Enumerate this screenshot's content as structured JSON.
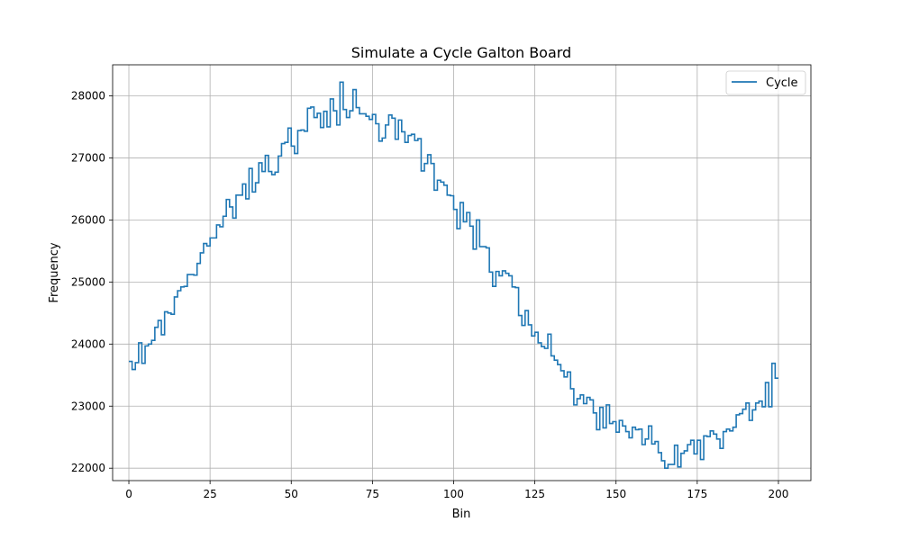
{
  "chart_data": {
    "type": "line",
    "drawstyle": "steps-post",
    "title": "Simulate a Cycle Galton Board",
    "xlabel": "Bin",
    "ylabel": "Frequency",
    "xlim": [
      -5,
      210
    ],
    "ylim": [
      21800,
      28500
    ],
    "xticks": [
      0,
      25,
      50,
      75,
      100,
      125,
      150,
      175,
      200
    ],
    "yticks": [
      22000,
      23000,
      24000,
      25000,
      26000,
      27000,
      28000
    ],
    "grid": true,
    "legend_position": "top-right",
    "series": [
      {
        "name": "Cycle",
        "color": "#1f77b4",
        "x": [
          0,
          1,
          2,
          3,
          4,
          5,
          6,
          7,
          8,
          9,
          10,
          11,
          12,
          13,
          14,
          15,
          16,
          17,
          18,
          19,
          20,
          21,
          22,
          23,
          24,
          25,
          26,
          27,
          28,
          29,
          30,
          31,
          32,
          33,
          34,
          35,
          36,
          37,
          38,
          39,
          40,
          41,
          42,
          43,
          44,
          45,
          46,
          47,
          48,
          49,
          50,
          51,
          52,
          53,
          54,
          55,
          56,
          57,
          58,
          59,
          60,
          61,
          62,
          63,
          64,
          65,
          66,
          67,
          68,
          69,
          70,
          71,
          72,
          73,
          74,
          75,
          76,
          77,
          78,
          79,
          80,
          81,
          82,
          83,
          84,
          85,
          86,
          87,
          88,
          89,
          90,
          91,
          92,
          93,
          94,
          95,
          96,
          97,
          98,
          99,
          100,
          101,
          102,
          103,
          104,
          105,
          106,
          107,
          108,
          109,
          110,
          111,
          112,
          113,
          114,
          115,
          116,
          117,
          118,
          119,
          120,
          121,
          122,
          123,
          124,
          125,
          126,
          127,
          128,
          129,
          130,
          131,
          132,
          133,
          134,
          135,
          136,
          137,
          138,
          139,
          140,
          141,
          142,
          143,
          144,
          145,
          146,
          147,
          148,
          149,
          150,
          151,
          152,
          153,
          154,
          155,
          156,
          157,
          158,
          159,
          160,
          161,
          162,
          163,
          164,
          165,
          166,
          167,
          168,
          169,
          170,
          171,
          172,
          173,
          174,
          175,
          176,
          177,
          178,
          179,
          180,
          181,
          182,
          183,
          184,
          185,
          186,
          187,
          188,
          189,
          190,
          191,
          192,
          193,
          194,
          195,
          196,
          197,
          198,
          199,
          200
        ],
        "values": [
          23720,
          23590,
          23700,
          24020,
          23690,
          23970,
          24000,
          24060,
          24270,
          24380,
          24150,
          24520,
          24500,
          24480,
          24760,
          24860,
          24920,
          24930,
          25120,
          25120,
          25110,
          25300,
          25470,
          25620,
          25580,
          25710,
          25710,
          25920,
          25890,
          26060,
          26330,
          26210,
          26030,
          26400,
          26400,
          26580,
          26340,
          26830,
          26450,
          26600,
          26920,
          26780,
          27040,
          26780,
          26730,
          26770,
          27030,
          27230,
          27250,
          27480,
          27190,
          27070,
          27440,
          27450,
          27430,
          27800,
          27820,
          27650,
          27720,
          27490,
          27750,
          27500,
          27950,
          27760,
          27530,
          28220,
          27780,
          27650,
          27760,
          28100,
          27810,
          27710,
          27710,
          27670,
          27620,
          27700,
          27550,
          27270,
          27320,
          27530,
          27690,
          27640,
          27300,
          27610,
          27420,
          27250,
          27360,
          27380,
          27280,
          27310,
          26790,
          26910,
          27050,
          26910,
          26480,
          26640,
          26610,
          26560,
          26400,
          26390,
          26170,
          25860,
          26280,
          25970,
          26120,
          25900,
          25530,
          26000,
          25570,
          25570,
          25550,
          25160,
          24930,
          25170,
          25100,
          25180,
          25140,
          25100,
          24920,
          24910,
          24460,
          24300,
          24540,
          24310,
          24130,
          24190,
          24020,
          23960,
          23930,
          24160,
          23810,
          23740,
          23670,
          23570,
          23470,
          23550,
          23280,
          23020,
          23120,
          23180,
          23040,
          23140,
          23100,
          22890,
          22620,
          22980,
          22650,
          23020,
          22720,
          22750,
          22580,
          22770,
          22680,
          22590,
          22490,
          22660,
          22620,
          22630,
          22380,
          22470,
          22680,
          22390,
          22430,
          22250,
          22120,
          22000,
          22060,
          22060,
          22370,
          22020,
          22240,
          22280,
          22380,
          22450,
          22230,
          22450,
          22140,
          22520,
          22510,
          22600,
          22550,
          22470,
          22320,
          22590,
          22630,
          22600,
          22660,
          22860,
          22880,
          22950,
          23050,
          22770,
          22940,
          23050,
          23080,
          22990,
          23380,
          22990,
          23690,
          23450,
          23450
        ]
      }
    ]
  }
}
